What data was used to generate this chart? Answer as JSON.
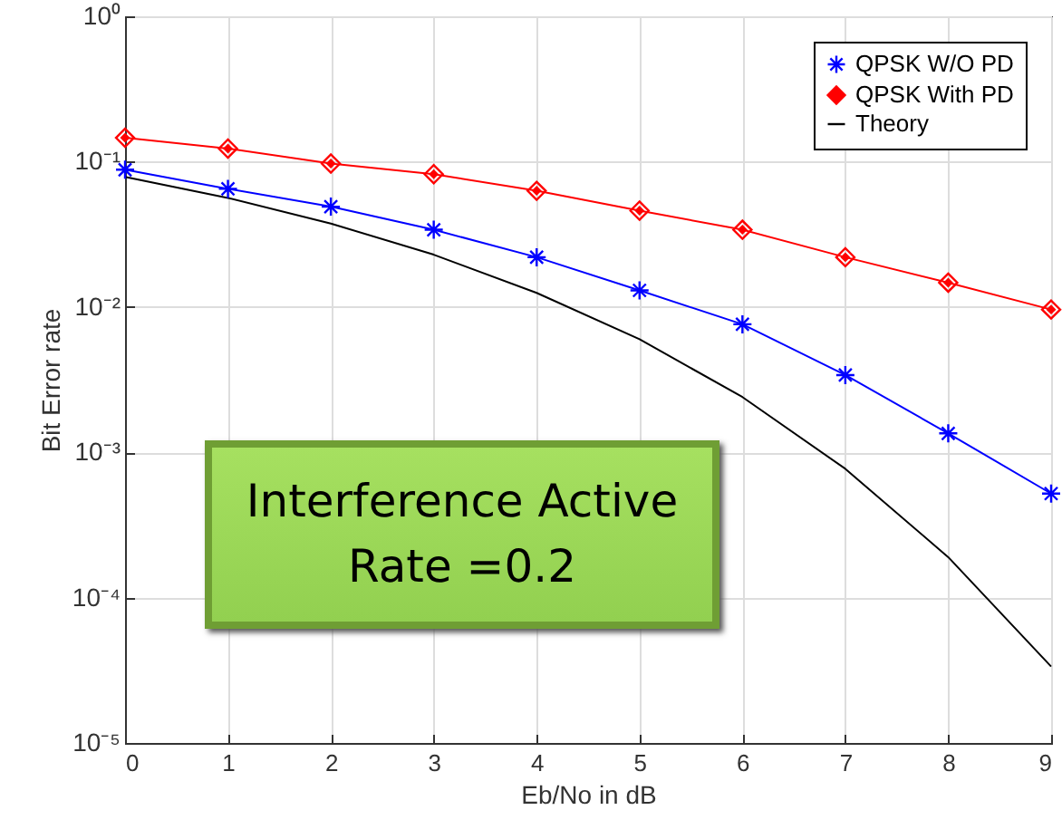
{
  "chart_data": {
    "type": "line",
    "xlabel": "Eb/No in dB",
    "ylabel": "Bit Error rate",
    "x": [
      0,
      1,
      2,
      3,
      4,
      5,
      6,
      7,
      8,
      9
    ],
    "series": [
      {
        "name": "QPSK W/O PD",
        "color": "#0000ff",
        "marker": "cross",
        "values": [
          0.088,
          0.065,
          0.049,
          0.034,
          0.022,
          0.013,
          0.0076,
          0.0034,
          0.00135,
          0.00052
        ]
      },
      {
        "name": "QPSK With PD",
        "color": "#ff0000",
        "marker": "diamond",
        "values": [
          0.146,
          0.123,
          0.097,
          0.082,
          0.063,
          0.046,
          0.034,
          0.022,
          0.0147,
          0.0096
        ]
      },
      {
        "name": "Theory",
        "color": "#000000",
        "marker": "none",
        "values": [
          0.0786,
          0.0563,
          0.0375,
          0.0229,
          0.0125,
          0.006,
          0.0024,
          0.00077,
          0.00019,
          3.36e-05
        ]
      }
    ],
    "log": "y",
    "xlim": [
      0,
      9
    ],
    "xticks": [
      0,
      1,
      2,
      3,
      4,
      5,
      6,
      7,
      8,
      9
    ],
    "ylim": [
      1e-05,
      1
    ],
    "yticks": [
      {
        "value": 1e-05,
        "label": "10⁻⁵"
      },
      {
        "value": 0.0001,
        "label": "10⁻⁴"
      },
      {
        "value": 0.001,
        "label": "10⁻³"
      },
      {
        "value": 0.01,
        "label": "10⁻²"
      },
      {
        "value": 0.1,
        "label": "10⁻¹"
      },
      {
        "value": 1,
        "label": "10⁰"
      }
    ],
    "grid": true,
    "legend": "top right",
    "annotations": [
      "Interference Active Rate =0.2"
    ]
  }
}
